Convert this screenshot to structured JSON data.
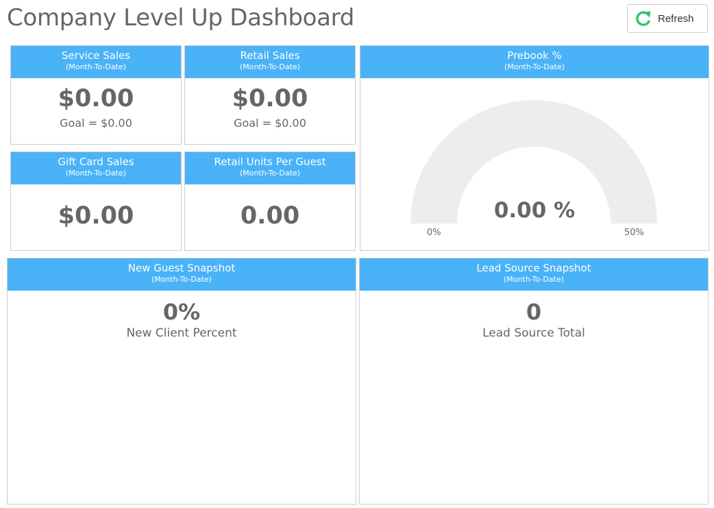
{
  "header": {
    "title": "Company Level Up Dashboard",
    "refresh_label": "Refresh"
  },
  "colors": {
    "header_bg": "#4ab2f7",
    "refresh_icon": "#2ec26a",
    "gauge_track": "#eeeded",
    "text": "#666666"
  },
  "cards": {
    "service_sales": {
      "title": "Service Sales",
      "subtitle": "(Month-To-Date)",
      "value": "$0.00",
      "goal": "Goal = $0.00"
    },
    "retail_sales": {
      "title": "Retail Sales",
      "subtitle": "(Month-To-Date)",
      "value": "$0.00",
      "goal": "Goal = $0.00"
    },
    "gift_card_sales": {
      "title": "Gift Card Sales",
      "subtitle": "(Month-To-Date)",
      "value": "$0.00"
    },
    "retail_units": {
      "title": "Retail Units Per Guest",
      "subtitle": "(Month-To-Date)",
      "value": "0.00"
    },
    "prebook": {
      "title": "Prebook %",
      "subtitle": "(Month-To-Date)",
      "value": "0.00 %",
      "min_label": "0%",
      "max_label": "50%",
      "fill_fraction": 0
    },
    "new_guest": {
      "title": "New Guest Snapshot",
      "subtitle": "(Month-To-Date)",
      "value": "0%",
      "label": "New Client Percent"
    },
    "lead_source": {
      "title": "Lead Source Snapshot",
      "subtitle": "(Month-To-Date)",
      "value": "0",
      "label": "Lead Source Total"
    }
  }
}
